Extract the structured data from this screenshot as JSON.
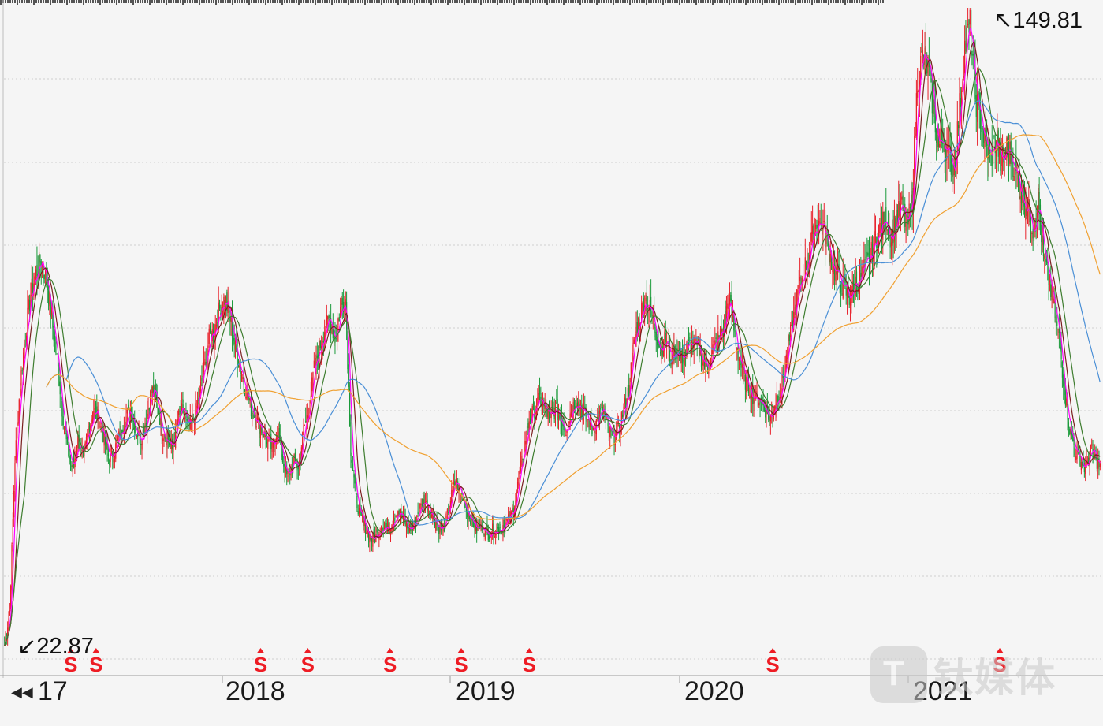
{
  "chart_data": {
    "type": "candlestick",
    "title": "",
    "x_axis_labels": [
      "17",
      "2018",
      "2019",
      "2020",
      "2021"
    ],
    "price_max_label": "149.81",
    "price_min_label": "22.87",
    "ylim": [
      22.87,
      149.81
    ],
    "grid": "horizontal dotted",
    "closes_weekly_approx": [
      23,
      30,
      60,
      75,
      85,
      93,
      97,
      100,
      96,
      88,
      80,
      70,
      62,
      58,
      64,
      60,
      66,
      70,
      68,
      64,
      60,
      62,
      65,
      68,
      70,
      66,
      64,
      68,
      74,
      72,
      66,
      64,
      62,
      68,
      70,
      66,
      68,
      72,
      78,
      84,
      86,
      90,
      92,
      88,
      82,
      78,
      74,
      70,
      68,
      66,
      64,
      62,
      66,
      60,
      56,
      60,
      58,
      66,
      70,
      78,
      82,
      86,
      88,
      84,
      90,
      92,
      62,
      52,
      48,
      46,
      44,
      45,
      47,
      46,
      48,
      50,
      48,
      46,
      47,
      50,
      52,
      50,
      48,
      46,
      47,
      52,
      56,
      53,
      50,
      48,
      46,
      47,
      45,
      46,
      46,
      47,
      48,
      50,
      56,
      62,
      68,
      70,
      72,
      70,
      68,
      70,
      68,
      66,
      70,
      72,
      70,
      68,
      66,
      68,
      70,
      66,
      64,
      66,
      70,
      74,
      84,
      88,
      92,
      90,
      86,
      82,
      84,
      80,
      82,
      80,
      82,
      83,
      82,
      80,
      78,
      82,
      84,
      86,
      92,
      86,
      80,
      76,
      74,
      72,
      72,
      70,
      68,
      72,
      74,
      80,
      86,
      92,
      96,
      100,
      104,
      108,
      106,
      102,
      98,
      96,
      94,
      92,
      95,
      96,
      98,
      100,
      104,
      106,
      108,
      104,
      108,
      110,
      106,
      112,
      136,
      140,
      138,
      130,
      122,
      124,
      120,
      118,
      130,
      142,
      146,
      132,
      128,
      122,
      120,
      124,
      118,
      122,
      120,
      116,
      112,
      110,
      106,
      112,
      100,
      96,
      90,
      84,
      74,
      66,
      62,
      60,
      58,
      62,
      60,
      58
    ],
    "moving_averages": [
      {
        "color": "#ff00ff",
        "period": "short"
      },
      {
        "color": "#7a1f1f",
        "period": "short"
      },
      {
        "color": "#3e7d2f",
        "period": "medium"
      },
      {
        "color": "#4a8fd6",
        "period": "medium"
      },
      {
        "color": "#f0a030",
        "period": "long"
      }
    ],
    "dividend_markers": [
      {
        "x_fraction": 0.061,
        "label": "S"
      },
      {
        "x_fraction": 0.084,
        "label": "S"
      },
      {
        "x_fraction": 0.234,
        "label": "S"
      },
      {
        "x_fraction": 0.277,
        "label": "S"
      },
      {
        "x_fraction": 0.352,
        "label": "S"
      },
      {
        "x_fraction": 0.417,
        "label": "S"
      },
      {
        "x_fraction": 0.479,
        "label": "S"
      },
      {
        "x_fraction": 0.701,
        "label": "S"
      },
      {
        "x_fraction": 0.908,
        "label": "S"
      }
    ]
  },
  "colors": {
    "up": "#e8202a",
    "down": "#1a9a3a",
    "grid": "#cfcfcf",
    "marker": "#ee1c24",
    "background": "#f5f5f5"
  },
  "labels": {
    "max": "149.81",
    "min": "22.87",
    "max_arrow": "↖",
    "min_arrow": "↙",
    "nav_back": "◀◀",
    "years": [
      "17",
      "2018",
      "2019",
      "2020",
      "2021"
    ],
    "watermark_logo": "T",
    "watermark_text": "钛媒体"
  }
}
